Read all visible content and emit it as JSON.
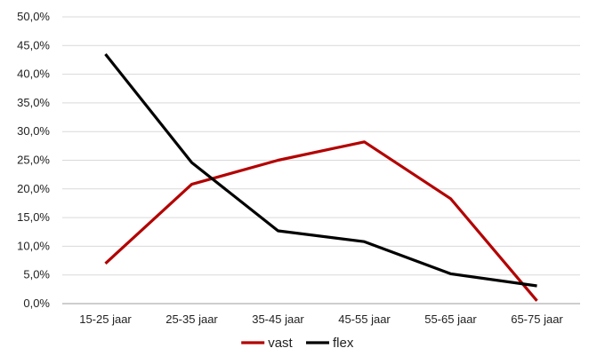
{
  "chart_data": {
    "type": "line",
    "categories": [
      "15-25 jaar",
      "25-35 jaar",
      "35-45 jaar",
      "45-55 jaar",
      "55-65 jaar",
      "65-75 jaar"
    ],
    "y_ticks": [
      "0,0%",
      "5,0%",
      "10,0%",
      "15,0%",
      "20,0%",
      "25,0%",
      "30,0%",
      "35,0%",
      "40,0%",
      "45,0%",
      "50,0%"
    ],
    "ylim": [
      0,
      50
    ],
    "grid": true,
    "legend_position": "bottom",
    "series": [
      {
        "name": "vast",
        "color": "#b30000",
        "values": [
          7.0,
          20.8,
          25.0,
          28.2,
          18.3,
          0.5
        ]
      },
      {
        "name": "flex",
        "color": "#000000",
        "values": [
          43.5,
          24.6,
          12.7,
          10.8,
          5.2,
          3.1
        ]
      }
    ]
  }
}
